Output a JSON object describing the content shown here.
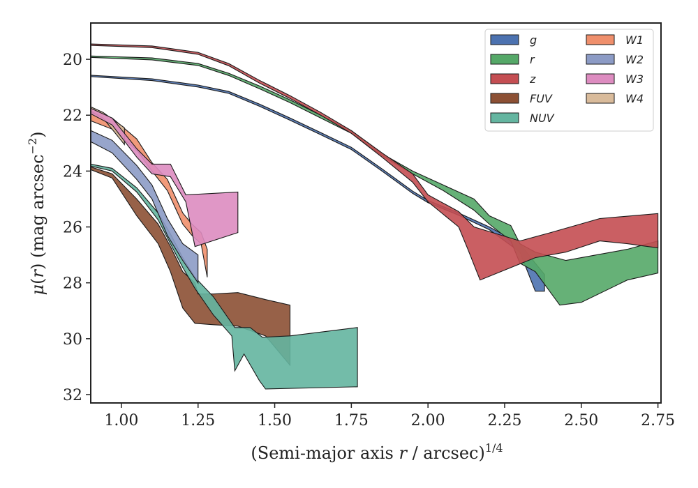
{
  "chart_data": {
    "type": "area",
    "xlabel": "(Semi-major axis r / arcsec)",
    "xlabel_parts": {
      "pre": "(Semi-major axis ",
      "var": "r",
      "post": " / arcsec)",
      "sup": "1/4"
    },
    "ylabel": "μ(r) (mag arcsec⁻²)",
    "ylabel_parts": {
      "mu": "μ",
      "open": "(",
      "var": "r",
      "close": ")",
      "rest": " (mag arcsec",
      "sup": "−2",
      "end": ")"
    },
    "xlim": [
      0.9,
      2.76
    ],
    "ylim": [
      32.3,
      18.7
    ],
    "y_inverted": true,
    "xticks": [
      1.0,
      1.25,
      1.5,
      1.75,
      2.0,
      2.25,
      2.5,
      2.75
    ],
    "xtick_labels": [
      "1.00",
      "1.25",
      "1.50",
      "1.75",
      "2.00",
      "2.25",
      "2.50",
      "2.75"
    ],
    "yticks": [
      20,
      22,
      24,
      26,
      28,
      30,
      32
    ],
    "ytick_labels": [
      "20",
      "22",
      "24",
      "26",
      "28",
      "30",
      "32"
    ],
    "grid": false,
    "legend_position": "top-right",
    "legend_columns": 2,
    "series": [
      {
        "name": "g",
        "color": "#4c72b0",
        "upper": [
          [
            0.9,
            20.57
          ],
          [
            1.1,
            20.7
          ],
          [
            1.25,
            20.92
          ],
          [
            1.35,
            21.15
          ],
          [
            1.45,
            21.6
          ],
          [
            1.55,
            22.1
          ],
          [
            1.65,
            22.62
          ],
          [
            1.75,
            23.15
          ],
          [
            1.85,
            23.92
          ],
          [
            1.95,
            24.72
          ],
          [
            2.0,
            25.05
          ],
          [
            2.1,
            25.5
          ],
          [
            2.2,
            26.0
          ],
          [
            2.3,
            26.6
          ],
          [
            2.35,
            27.3
          ],
          [
            2.38,
            27.7
          ]
        ],
        "lower": [
          [
            0.9,
            20.62
          ],
          [
            1.1,
            20.76
          ],
          [
            1.25,
            20.99
          ],
          [
            1.35,
            21.22
          ],
          [
            1.45,
            21.68
          ],
          [
            1.55,
            22.18
          ],
          [
            1.65,
            22.7
          ],
          [
            1.75,
            23.23
          ],
          [
            1.85,
            24.0
          ],
          [
            1.95,
            24.8
          ],
          [
            2.0,
            25.13
          ],
          [
            2.1,
            25.58
          ],
          [
            2.2,
            26.1
          ],
          [
            2.3,
            26.9
          ],
          [
            2.35,
            28.3
          ],
          [
            2.38,
            28.3
          ]
        ]
      },
      {
        "name": "r",
        "color": "#55a868",
        "upper": [
          [
            0.9,
            19.88
          ],
          [
            1.1,
            19.95
          ],
          [
            1.25,
            20.15
          ],
          [
            1.35,
            20.5
          ],
          [
            1.45,
            20.95
          ],
          [
            1.55,
            21.45
          ],
          [
            1.65,
            22.0
          ],
          [
            1.75,
            22.55
          ],
          [
            1.85,
            23.38
          ],
          [
            1.95,
            24.0
          ],
          [
            2.05,
            24.5
          ],
          [
            2.15,
            25.0
          ],
          [
            2.2,
            25.6
          ],
          [
            2.27,
            25.95
          ],
          [
            2.3,
            26.6
          ],
          [
            2.35,
            26.9
          ],
          [
            2.45,
            27.2
          ],
          [
            2.55,
            27.0
          ],
          [
            2.65,
            26.8
          ],
          [
            2.75,
            26.5
          ]
        ],
        "lower": [
          [
            0.9,
            19.93
          ],
          [
            1.1,
            20.02
          ],
          [
            1.25,
            20.22
          ],
          [
            1.35,
            20.58
          ],
          [
            1.45,
            21.05
          ],
          [
            1.55,
            21.55
          ],
          [
            1.65,
            22.1
          ],
          [
            1.75,
            22.65
          ],
          [
            1.85,
            23.45
          ],
          [
            1.95,
            24.1
          ],
          [
            2.05,
            24.7
          ],
          [
            2.15,
            25.4
          ],
          [
            2.2,
            25.9
          ],
          [
            2.27,
            26.5
          ],
          [
            2.3,
            27.3
          ],
          [
            2.35,
            27.6
          ],
          [
            2.43,
            28.8
          ],
          [
            2.5,
            28.7
          ],
          [
            2.65,
            27.9
          ],
          [
            2.75,
            27.65
          ]
        ]
      },
      {
        "name": "z",
        "color": "#c44e52",
        "upper": [
          [
            0.9,
            19.45
          ],
          [
            1.1,
            19.52
          ],
          [
            1.25,
            19.75
          ],
          [
            1.35,
            20.15
          ],
          [
            1.45,
            20.75
          ],
          [
            1.55,
            21.3
          ],
          [
            1.65,
            21.9
          ],
          [
            1.75,
            22.55
          ],
          [
            1.85,
            23.35
          ],
          [
            1.95,
            24.1
          ],
          [
            2.0,
            24.85
          ],
          [
            2.1,
            25.45
          ],
          [
            2.15,
            26.0
          ],
          [
            2.3,
            26.5
          ],
          [
            2.4,
            26.2
          ],
          [
            2.56,
            25.7
          ],
          [
            2.75,
            25.52
          ]
        ],
        "lower": [
          [
            0.9,
            19.5
          ],
          [
            1.1,
            19.58
          ],
          [
            1.25,
            19.82
          ],
          [
            1.35,
            20.23
          ],
          [
            1.45,
            20.85
          ],
          [
            1.55,
            21.4
          ],
          [
            1.65,
            22.0
          ],
          [
            1.75,
            22.65
          ],
          [
            1.85,
            23.5
          ],
          [
            1.95,
            24.4
          ],
          [
            2.0,
            25.1
          ],
          [
            2.1,
            26.0
          ],
          [
            2.13,
            26.8
          ],
          [
            2.17,
            27.9
          ],
          [
            2.35,
            27.1
          ],
          [
            2.45,
            26.9
          ],
          [
            2.56,
            26.5
          ],
          [
            2.65,
            26.6
          ],
          [
            2.75,
            26.75
          ]
        ]
      },
      {
        "name": "FUV",
        "color": "#8c5034",
        "upper": [
          [
            0.9,
            23.85
          ],
          [
            0.97,
            24.1
          ],
          [
            1.05,
            25.0
          ],
          [
            1.12,
            25.9
          ],
          [
            1.16,
            26.7
          ],
          [
            1.2,
            27.6
          ],
          [
            1.24,
            28.0
          ],
          [
            1.25,
            28.4
          ],
          [
            1.3,
            28.4
          ],
          [
            1.38,
            28.35
          ],
          [
            1.47,
            28.6
          ],
          [
            1.55,
            28.8
          ]
        ],
        "lower": [
          [
            0.9,
            23.95
          ],
          [
            0.97,
            24.25
          ],
          [
            1.05,
            25.6
          ],
          [
            1.12,
            26.6
          ],
          [
            1.16,
            27.6
          ],
          [
            1.2,
            28.9
          ],
          [
            1.24,
            29.45
          ],
          [
            1.3,
            29.5
          ],
          [
            1.38,
            29.55
          ],
          [
            1.47,
            29.9
          ],
          [
            1.55,
            30.95
          ]
        ]
      },
      {
        "name": "NUV",
        "color": "#64b5a0",
        "upper": [
          [
            0.9,
            23.75
          ],
          [
            0.97,
            23.9
          ],
          [
            1.05,
            24.6
          ],
          [
            1.12,
            25.5
          ],
          [
            1.16,
            26.25
          ],
          [
            1.2,
            27.1
          ],
          [
            1.24,
            27.8
          ],
          [
            1.3,
            28.5
          ],
          [
            1.37,
            29.6
          ],
          [
            1.42,
            29.6
          ],
          [
            1.46,
            29.95
          ],
          [
            1.55,
            29.9
          ],
          [
            1.77,
            29.6
          ]
        ],
        "lower": [
          [
            0.9,
            23.82
          ],
          [
            0.97,
            24.0
          ],
          [
            1.05,
            24.75
          ],
          [
            1.12,
            25.75
          ],
          [
            1.16,
            26.6
          ],
          [
            1.2,
            27.45
          ],
          [
            1.24,
            28.2
          ],
          [
            1.3,
            29.15
          ],
          [
            1.36,
            29.9
          ],
          [
            1.37,
            31.15
          ],
          [
            1.4,
            30.55
          ],
          [
            1.45,
            31.5
          ],
          [
            1.47,
            31.8
          ],
          [
            1.77,
            31.72
          ]
        ]
      },
      {
        "name": "W1",
        "color": "#ef8f6c",
        "upper": [
          [
            0.9,
            21.9
          ],
          [
            0.97,
            22.1
          ],
          [
            1.05,
            22.85
          ],
          [
            1.1,
            23.7
          ],
          [
            1.15,
            24.3
          ],
          [
            1.2,
            25.5
          ],
          [
            1.23,
            25.9
          ],
          [
            1.26,
            26.2
          ],
          [
            1.28,
            26.8
          ]
        ],
        "lower": [
          [
            0.9,
            22.2
          ],
          [
            0.97,
            22.5
          ],
          [
            1.05,
            23.25
          ],
          [
            1.1,
            24.0
          ],
          [
            1.15,
            24.7
          ],
          [
            1.2,
            25.9
          ],
          [
            1.23,
            26.3
          ],
          [
            1.26,
            26.6
          ],
          [
            1.28,
            27.8
          ]
        ]
      },
      {
        "name": "W2",
        "color": "#8c9bc5",
        "upper": [
          [
            0.9,
            22.55
          ],
          [
            0.97,
            22.9
          ],
          [
            1.05,
            23.8
          ],
          [
            1.1,
            24.5
          ],
          [
            1.15,
            25.7
          ],
          [
            1.2,
            26.6
          ],
          [
            1.25,
            27.0
          ]
        ],
        "lower": [
          [
            0.9,
            22.95
          ],
          [
            0.97,
            23.35
          ],
          [
            1.05,
            24.3
          ],
          [
            1.1,
            25.0
          ],
          [
            1.15,
            26.3
          ],
          [
            1.2,
            27.2
          ],
          [
            1.25,
            28.0
          ]
        ]
      },
      {
        "name": "W3",
        "color": "#dd8cc0",
        "upper": [
          [
            0.9,
            21.75
          ],
          [
            0.97,
            22.1
          ],
          [
            1.05,
            23.2
          ],
          [
            1.1,
            23.75
          ],
          [
            1.16,
            23.75
          ],
          [
            1.21,
            24.85
          ],
          [
            1.38,
            24.75
          ]
        ],
        "lower": [
          [
            0.9,
            21.95
          ],
          [
            0.97,
            22.35
          ],
          [
            1.05,
            23.5
          ],
          [
            1.1,
            24.1
          ],
          [
            1.16,
            24.2
          ],
          [
            1.21,
            25.1
          ],
          [
            1.24,
            26.7
          ],
          [
            1.38,
            26.2
          ]
        ]
      },
      {
        "name": "W4",
        "color": "#d9bb9b",
        "upper": [
          [
            0.9,
            21.7
          ],
          [
            0.94,
            21.9
          ],
          [
            1.01,
            22.45
          ]
        ],
        "lower": [
          [
            0.9,
            21.85
          ],
          [
            0.94,
            22.1
          ],
          [
            1.01,
            23.05
          ]
        ]
      }
    ]
  }
}
